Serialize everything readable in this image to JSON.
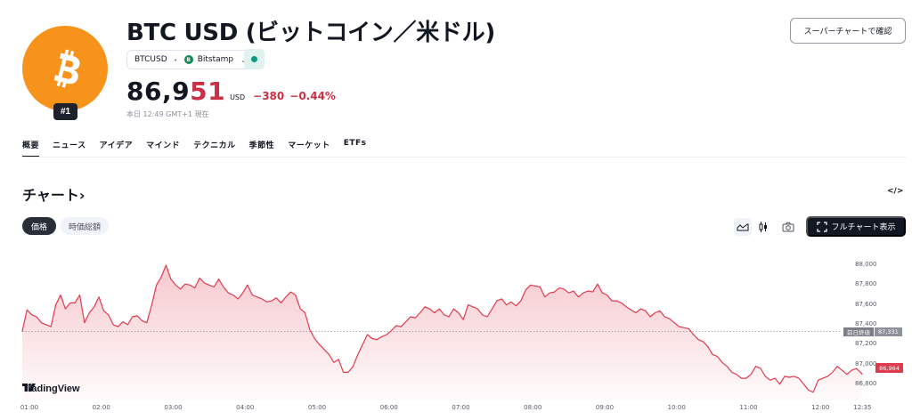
{
  "header": {
    "title": "BTC USD (ビットコイン／米ドル)",
    "rank_badge": "#1",
    "logo_icon": "bitcoin-icon",
    "symbol": "BTCUSD",
    "separator": "・",
    "exchange": "Bitstamp",
    "exchange_icon_letter": "B",
    "market_status": "open",
    "super_chart_button": "スーパーチャートで確認"
  },
  "quote": {
    "price_main": "86,9",
    "price_tail": "51",
    "currency": "USD",
    "change": "−380",
    "change_pct": "−0.44%",
    "timestamp": "本日 12:49 GMT+1 現在",
    "down_color": "#c93043"
  },
  "tabs": [
    {
      "label": "概要",
      "active": true
    },
    {
      "label": "ニュース",
      "active": false
    },
    {
      "label": "アイデア",
      "active": false
    },
    {
      "label": "マインド",
      "active": false
    },
    {
      "label": "テクニカル",
      "active": false
    },
    {
      "label": "季節性",
      "active": false
    },
    {
      "label": "マーケット",
      "active": false
    },
    {
      "label": "ETFs",
      "active": false
    }
  ],
  "chart_section": {
    "title": "チャート›",
    "embed_label": "</>",
    "segments": [
      {
        "label": "価格",
        "active": true
      },
      {
        "label": "時価総額",
        "active": false
      }
    ],
    "fullchart_button": "フルチャート表示",
    "brand": "TradingView",
    "prev_close_label": "前日終値",
    "prev_close_value": "87,331",
    "current_tag": "86,964"
  },
  "chart_data": {
    "type": "area",
    "title": "",
    "xlabel": "",
    "ylabel": "USD",
    "line_color": "#e03a4e",
    "ylim": [
      86650,
      88100
    ],
    "yticks": [
      88000,
      87800,
      87600,
      87400,
      87200,
      87000,
      86800
    ],
    "ytick_labels": [
      "88,000",
      "87,800",
      "87,600",
      "87,400",
      "87,200",
      "87,000",
      "86,800"
    ],
    "xticks": [
      "01:00",
      "02:00",
      "03:00",
      "04:00",
      "05:00",
      "06:00",
      "07:00",
      "08:00",
      "09:00",
      "10:00",
      "11:00",
      "12:00",
      "12:35"
    ],
    "xtick_minutes": [
      60,
      120,
      180,
      240,
      300,
      360,
      420,
      480,
      540,
      600,
      660,
      720,
      755
    ],
    "prev_close": 87331,
    "last": 86964,
    "grid": false,
    "series": [
      {
        "name": "BTCUSD",
        "minutes": [
          54,
          58,
          62,
          66,
          70,
          74,
          78,
          82,
          86,
          90,
          94,
          98,
          102,
          106,
          110,
          114,
          118,
          122,
          126,
          130,
          134,
          138,
          142,
          146,
          150,
          154,
          158,
          162,
          166,
          170,
          174,
          178,
          182,
          186,
          190,
          194,
          198,
          202,
          206,
          210,
          214,
          218,
          222,
          226,
          230,
          234,
          238,
          242,
          246,
          250,
          254,
          258,
          262,
          266,
          270,
          274,
          278,
          282,
          286,
          290,
          294,
          298,
          302,
          306,
          310,
          314,
          318,
          322,
          326,
          330,
          334,
          338,
          342,
          346,
          350,
          354,
          358,
          362,
          366,
          370,
          374,
          378,
          382,
          386,
          390,
          394,
          398,
          402,
          406,
          410,
          414,
          418,
          422,
          426,
          430,
          434,
          438,
          442,
          446,
          450,
          454,
          458,
          462,
          466,
          470,
          474,
          478,
          482,
          486,
          490,
          494,
          498,
          502,
          506,
          510,
          514,
          518,
          522,
          526,
          530,
          534,
          538,
          542,
          546,
          550,
          554,
          558,
          562,
          566,
          570,
          574,
          578,
          582,
          586,
          590,
          594,
          598,
          602,
          606,
          610,
          614,
          618,
          622,
          626,
          630,
          634,
          638,
          642,
          646,
          650,
          654,
          658,
          662,
          666,
          670,
          674,
          678,
          682,
          686,
          690,
          694,
          698,
          702,
          706,
          710,
          714,
          718,
          722,
          726,
          730,
          734,
          738,
          742,
          746,
          750,
          755
        ],
        "values": [
          87330,
          87550,
          87500,
          87480,
          87420,
          87400,
          87380,
          87600,
          87700,
          87560,
          87620,
          87620,
          87700,
          87420,
          87520,
          87580,
          87680,
          87540,
          87500,
          87400,
          87380,
          87430,
          87400,
          87480,
          87490,
          87440,
          87420,
          87600,
          87800,
          87880,
          88000,
          87860,
          87800,
          87760,
          87810,
          87800,
          87770,
          87870,
          87820,
          87800,
          87780,
          87860,
          87780,
          87720,
          87700,
          87660,
          87720,
          87800,
          87700,
          87680,
          87660,
          87630,
          87640,
          87670,
          87620,
          87680,
          87730,
          87700,
          87560,
          87520,
          87350,
          87260,
          87200,
          87150,
          87100,
          87020,
          87050,
          86920,
          86920,
          86980,
          87100,
          87200,
          87300,
          87260,
          87250,
          87280,
          87300,
          87340,
          87390,
          87380,
          87430,
          87480,
          87470,
          87520,
          87580,
          87560,
          87520,
          87560,
          87500,
          87480,
          87560,
          87520,
          87450,
          87600,
          87580,
          87560,
          87500,
          87480,
          87560,
          87640,
          87660,
          87600,
          87630,
          87590,
          87640,
          87750,
          87800,
          87790,
          87780,
          87680,
          87720,
          87730,
          87770,
          87760,
          87720,
          87740,
          87680,
          87720,
          87740,
          87730,
          87810,
          87720,
          87700,
          87640,
          87640,
          87620,
          87580,
          87550,
          87520,
          87560,
          87540,
          87480,
          87520,
          87540,
          87480,
          87460,
          87420,
          87380,
          87370,
          87360,
          87300,
          87250,
          87230,
          87180,
          87100,
          87080,
          87020,
          86980,
          86920,
          86900,
          86860,
          86860,
          86900,
          86980,
          86960,
          86880,
          86840,
          86860,
          86800,
          86880,
          86870,
          86880,
          86860,
          86800,
          86740,
          86720,
          86840,
          86860,
          86880,
          86920,
          86980,
          86940,
          86900,
          86940,
          86960,
          86900,
          86940,
          86980,
          86960,
          86920,
          86940,
          86960,
          86930,
          86950,
          87060,
          87030,
          86964
        ]
      }
    ]
  }
}
